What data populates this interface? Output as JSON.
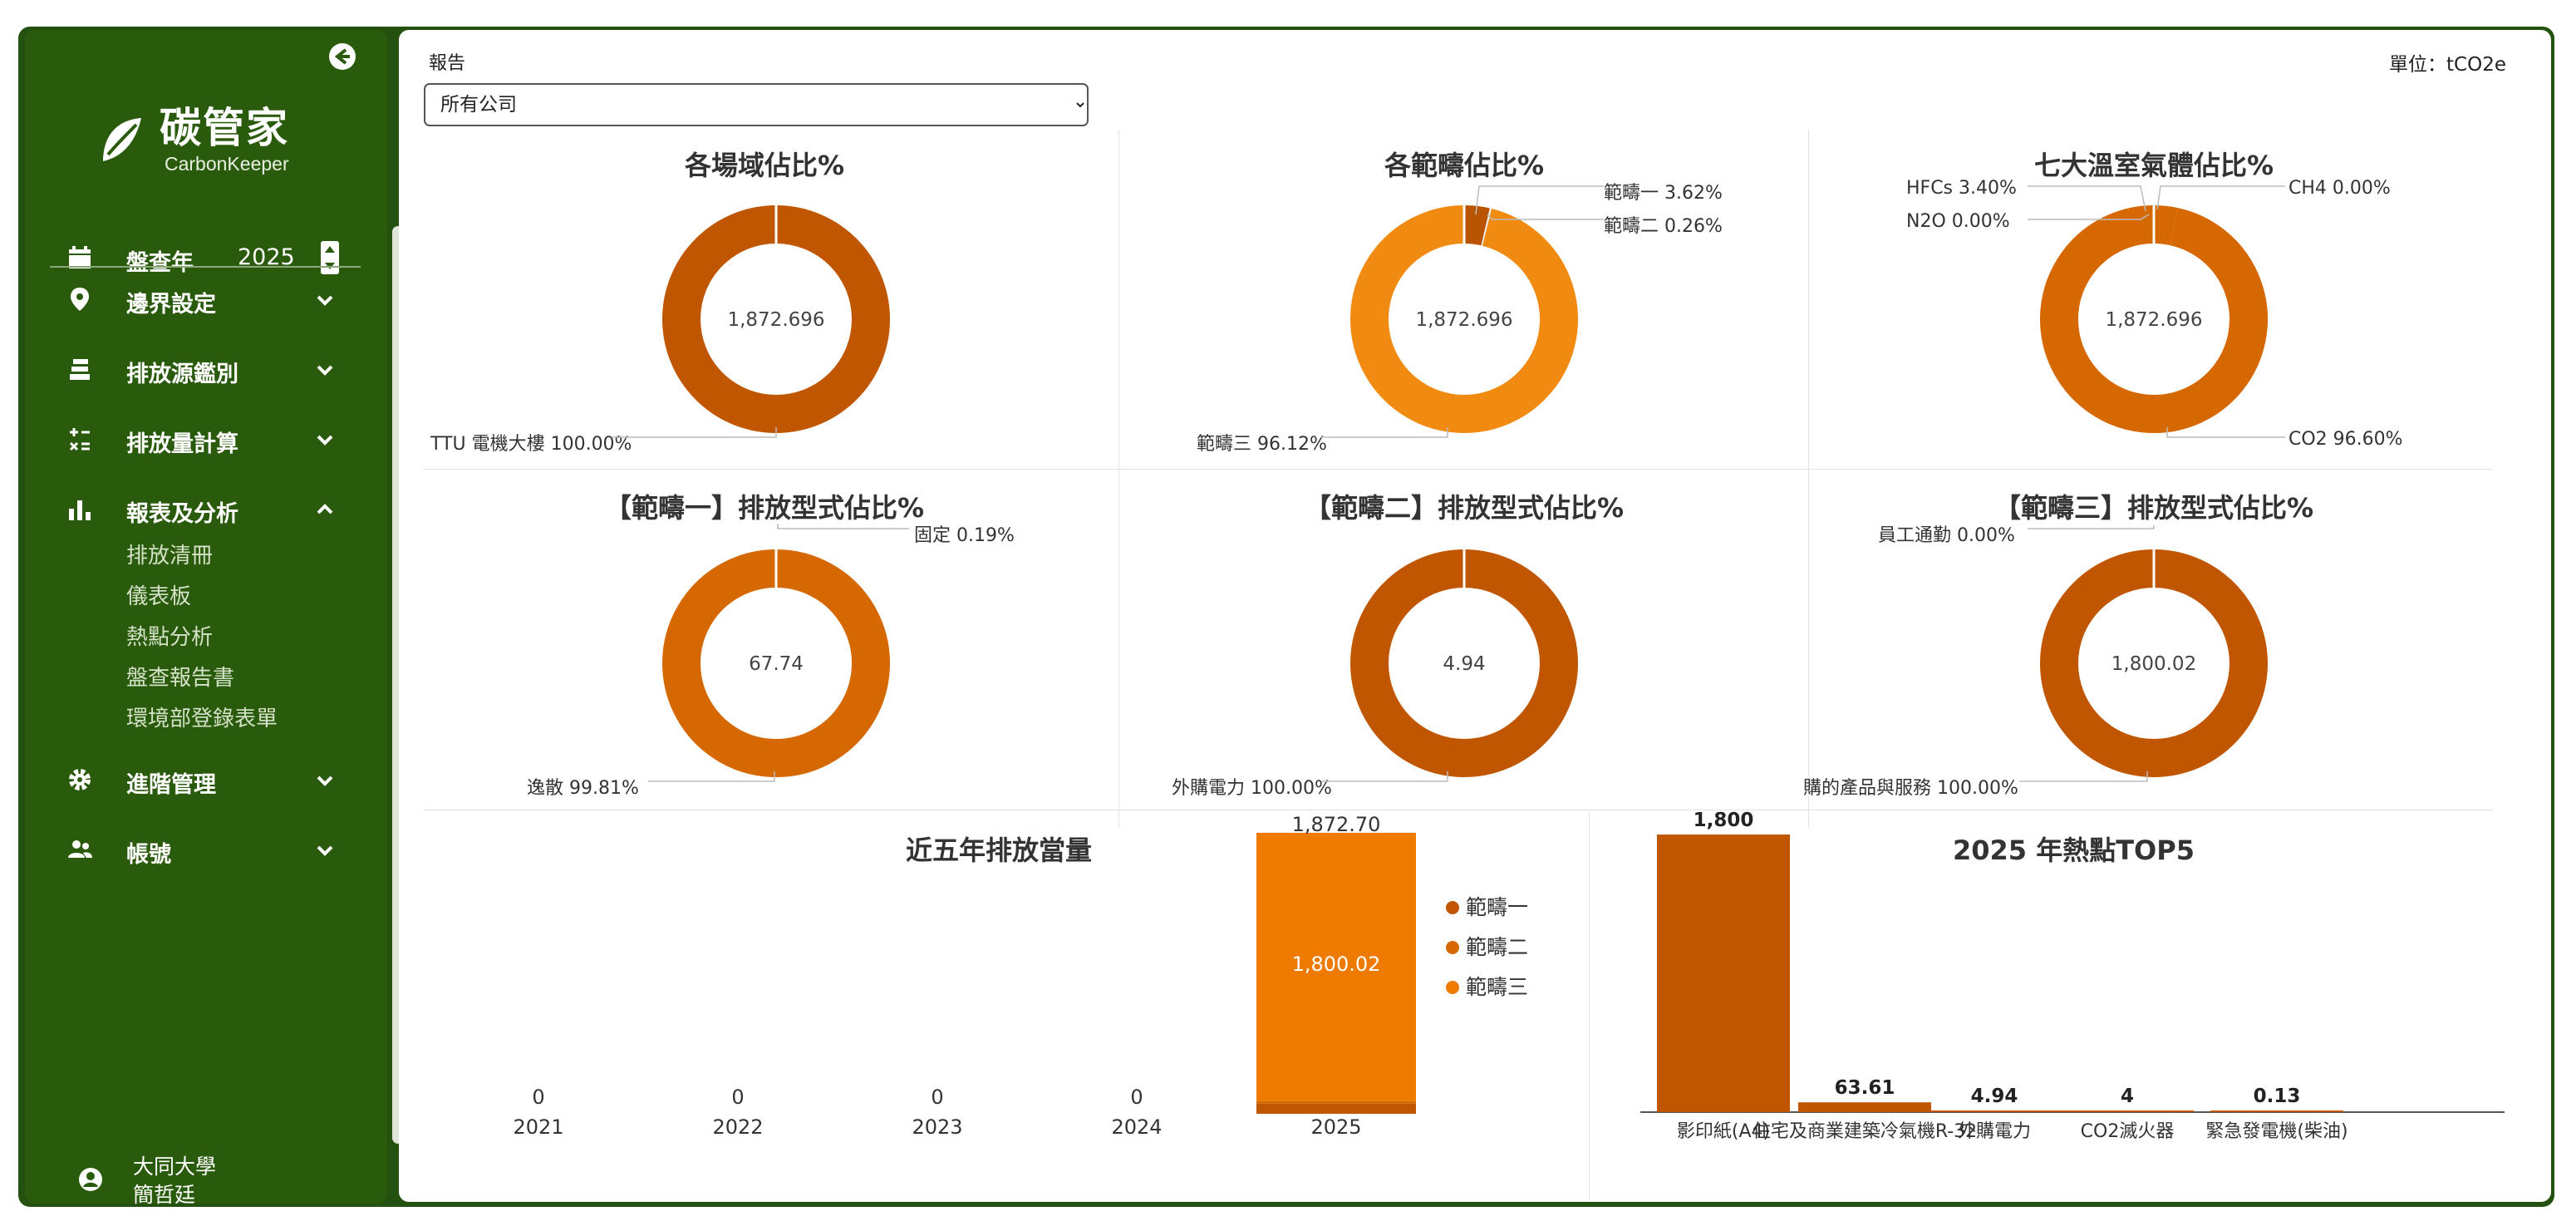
{
  "app": {
    "name": "碳管家",
    "subtitle": "CarbonKeeper"
  },
  "colors": {
    "sidebar": "#2a5a0c",
    "dark_orange": "#c05600",
    "mid_orange": "#d66800",
    "orange": "#ee7a00",
    "light_orange": "#f08a10"
  },
  "sidebar": {
    "year_label": "盤查年",
    "year_value": "2025",
    "items": [
      {
        "label": "邊界設定",
        "icon": "map-pin-icon"
      },
      {
        "label": "排放源鑑別",
        "icon": "stack-icon"
      },
      {
        "label": "排放量計算",
        "icon": "calculator-icon"
      },
      {
        "label": "報表及分析",
        "icon": "bar-chart-icon"
      },
      {
        "label": "進階管理",
        "icon": "gear-icon"
      },
      {
        "label": "帳號",
        "icon": "users-icon"
      }
    ],
    "sub_items": [
      "排放清冊",
      "儀表板",
      "熱點分析",
      "盤查報告書",
      "環境部登錄表單"
    ],
    "user": {
      "line1": "大同大學",
      "line2": "簡哲廷"
    }
  },
  "header": {
    "report_label": "報告",
    "unit": "單位：tCO2e",
    "company_option": "所有公司"
  },
  "chart_data": [
    {
      "type": "pie",
      "title": "各場域佔比%",
      "center": "1,872.696",
      "slices": [
        {
          "label": "TTU 電機大樓 100.00%",
          "value": 100.0
        }
      ]
    },
    {
      "type": "pie",
      "title": "各範疇佔比%",
      "center": "1,872.696",
      "slices": [
        {
          "label": "範疇一 3.62%",
          "value": 3.62
        },
        {
          "label": "範疇二 0.26%",
          "value": 0.26
        },
        {
          "label": "範疇三 96.12%",
          "value": 96.12
        }
      ]
    },
    {
      "type": "pie",
      "title": "七大溫室氣體佔比%",
      "center": "1,872.696",
      "slices": [
        {
          "label": "HFCs 3.40%",
          "value": 3.4
        },
        {
          "label": "N2O 0.00%",
          "value": 0.0
        },
        {
          "label": "CH4 0.00%",
          "value": 0.0
        },
        {
          "label": "CO2 96.60%",
          "value": 96.6
        }
      ]
    },
    {
      "type": "pie",
      "title": "【範疇一】排放型式佔比%",
      "center": "67.74",
      "slices": [
        {
          "label": "固定 0.19%",
          "value": 0.19
        },
        {
          "label": "逸散 99.81%",
          "value": 99.81
        }
      ]
    },
    {
      "type": "pie",
      "title": "【範疇二】排放型式佔比%",
      "center": "4.94",
      "slices": [
        {
          "label": "外購電力 100.00%",
          "value": 100.0
        }
      ]
    },
    {
      "type": "pie",
      "title": "【範疇三】排放型式佔比%",
      "center": "1,800.02",
      "slices": [
        {
          "label": "員工通勤 0.00%",
          "value": 0.0
        },
        {
          "label": "購的產品與服務 100.00%",
          "value": 100.0
        }
      ]
    },
    {
      "type": "bar",
      "title": "近五年排放當量",
      "categories": [
        "2021",
        "2022",
        "2023",
        "2024",
        "2025"
      ],
      "totals": [
        "0",
        "0",
        "0",
        "0",
        "1,872.70"
      ],
      "segment_label": "1,800.02",
      "series": [
        {
          "name": "範疇一",
          "values": [
            0,
            0,
            0,
            0,
            67.74
          ]
        },
        {
          "name": "範疇二",
          "values": [
            0,
            0,
            0,
            0,
            4.94
          ]
        },
        {
          "name": "範疇三",
          "values": [
            0,
            0,
            0,
            0,
            1800.02
          ]
        }
      ]
    },
    {
      "type": "bar",
      "title": "2025 年熱點TOP5",
      "categories": [
        "影印紙(A4)",
        "住宅及商業建築冷氣機R-32",
        "外購電力",
        "CO2滅火器",
        "緊急發電機(柴油)"
      ],
      "values": [
        1800,
        63.61,
        4.94,
        4,
        0.13
      ],
      "value_labels": [
        "1,800",
        "63.61",
        "4.94",
        "4",
        "0.13"
      ]
    }
  ]
}
